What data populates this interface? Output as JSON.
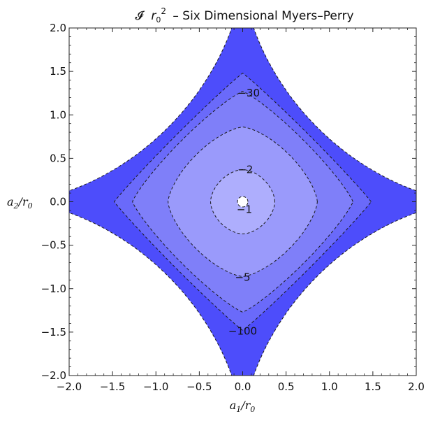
{
  "chart_data": {
    "type": "contour",
    "title": {
      "symbol": "𝓘",
      "r_base": "r",
      "r_sub": "0",
      "r_sup": "2",
      "text": "– Six Dimensional Myers–Perry"
    },
    "xlabel": {
      "base": "a",
      "sub1": "1",
      "slash": "/r",
      "sub2": "0"
    },
    "ylabel": {
      "base": "a",
      "sub1": "2",
      "slash": "/r",
      "sub2": "0"
    },
    "xlim": [
      -2.0,
      2.0
    ],
    "ylim": [
      -2.0,
      2.0
    ],
    "x_ticks": [
      -2.0,
      -1.5,
      -1.0,
      -0.5,
      0.0,
      0.5,
      1.0,
      1.5,
      2.0
    ],
    "y_ticks": [
      -2.0,
      -1.5,
      -1.0,
      -0.5,
      0.0,
      0.5,
      1.0,
      1.5,
      2.0
    ],
    "x_tick_labels": [
      "−2.0",
      "−1.5",
      "−1.0",
      "−0.5",
      "0.0",
      "0.5",
      "1.0",
      "1.5",
      "2.0"
    ],
    "y_tick_labels": [
      "−2.0",
      "−1.5",
      "−1.0",
      "−0.5",
      "0.0",
      "0.5",
      "1.0",
      "1.5",
      "2.0"
    ],
    "contour_style": "dashed",
    "contour_color": "#1a1a1a",
    "background": "#ffffff",
    "regions": [
      {
        "level": "outermost",
        "color": "#4d4dfb",
        "shape": "astroid (infinite extent along axes)"
      },
      {
        "level": -100,
        "color": "#6a6afa",
        "x_extent": 1.48,
        "y_extent": 1.48
      },
      {
        "level": -30,
        "color": "#7f7ff9",
        "x_extent": 1.27,
        "y_extent": 1.27
      },
      {
        "level": -5,
        "color": "#9a9afb",
        "x_extent": 0.86,
        "y_extent": 0.86
      },
      {
        "level": -2,
        "color": "#aeaefd",
        "x_extent": 0.37,
        "y_extent": 0.37
      },
      {
        "level": -1,
        "color": "#ffffff",
        "x_extent": 0.06,
        "y_extent": 0.06
      }
    ],
    "contour_labels": [
      {
        "text": "−30",
        "x": 0.07,
        "y": 1.26
      },
      {
        "text": "−2",
        "x": 0.03,
        "y": 0.38
      },
      {
        "text": "−1",
        "x": 0.02,
        "y": -0.08
      },
      {
        "text": "−5",
        "x": 0.0,
        "y": -0.86
      },
      {
        "text": "−100",
        "x": 0.0,
        "y": -1.48
      }
    ]
  }
}
